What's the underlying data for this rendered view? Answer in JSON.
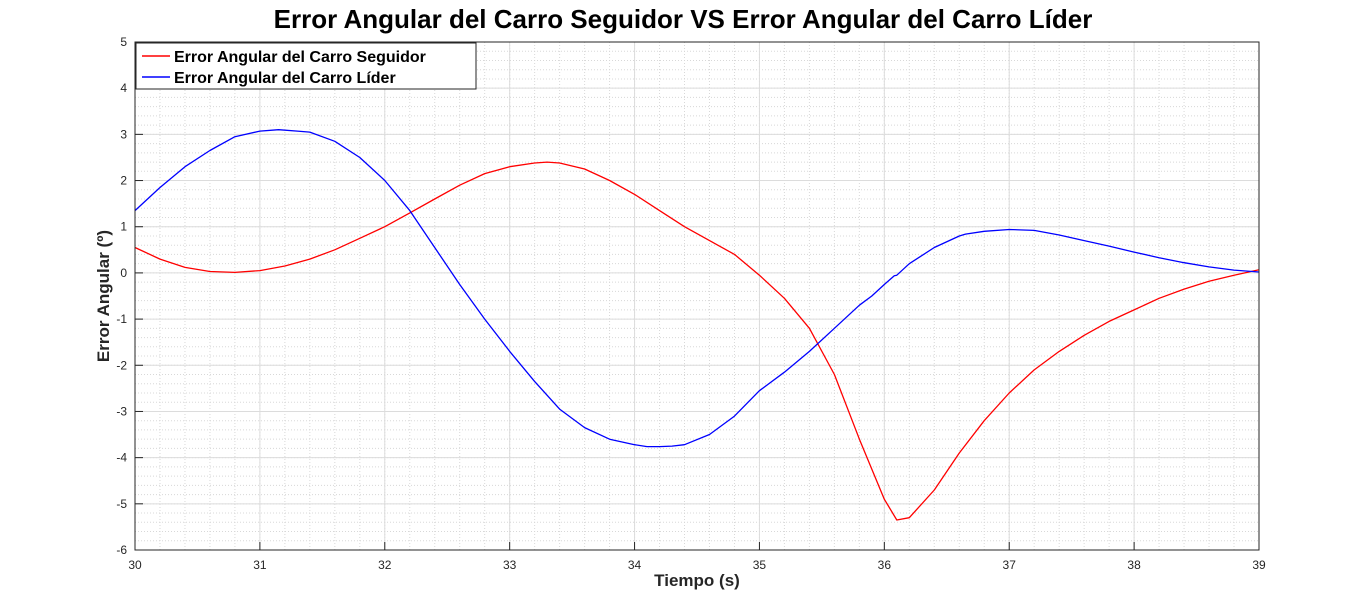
{
  "chart_data": {
    "type": "line",
    "title": "Error Angular del Carro Seguidor VS Error Angular del Carro Líder",
    "xlabel": "Tiempo (s)",
    "ylabel": "Error Angular (º)",
    "xlim": [
      30,
      39
    ],
    "ylim": [
      -6,
      5
    ],
    "xticks": [
      "30",
      "31",
      "32",
      "33",
      "34",
      "35",
      "36",
      "37",
      "38",
      "39"
    ],
    "yticks": [
      "5",
      "4",
      "3",
      "2",
      "1",
      "0",
      "-1",
      "-2",
      "-3",
      "-4",
      "-5",
      "-6"
    ],
    "grid": true,
    "minor_grid": true,
    "legend_position": "top-left",
    "series": [
      {
        "name": "Error Angular del Carro Seguidor",
        "color": "#ff0000",
        "x": [
          30.0,
          30.2,
          30.4,
          30.6,
          30.8,
          31.0,
          31.2,
          31.4,
          31.6,
          31.8,
          32.0,
          32.2,
          32.4,
          32.6,
          32.8,
          33.0,
          33.2,
          33.3,
          33.4,
          33.6,
          33.8,
          34.0,
          34.2,
          34.4,
          34.6,
          34.8,
          35.0,
          35.2,
          35.4,
          35.6,
          35.8,
          36.0,
          36.1,
          36.2,
          36.4,
          36.6,
          36.8,
          37.0,
          37.2,
          37.4,
          37.6,
          37.8,
          38.0,
          38.2,
          38.4,
          38.6,
          38.8,
          39.0
        ],
        "y": [
          0.55,
          0.3,
          0.12,
          0.03,
          0.01,
          0.05,
          0.15,
          0.3,
          0.5,
          0.75,
          1.0,
          1.3,
          1.6,
          1.9,
          2.15,
          2.3,
          2.38,
          2.4,
          2.38,
          2.25,
          2.0,
          1.7,
          1.35,
          1.0,
          0.7,
          0.4,
          -0.05,
          -0.55,
          -1.2,
          -2.2,
          -3.6,
          -4.9,
          -5.35,
          -5.3,
          -4.7,
          -3.9,
          -3.2,
          -2.6,
          -2.1,
          -1.7,
          -1.35,
          -1.05,
          -0.8,
          -0.55,
          -0.35,
          -0.18,
          -0.05,
          0.07
        ]
      },
      {
        "name": "Error Angular del Carro Líder",
        "color": "#0000ff",
        "x": [
          30.0,
          30.2,
          30.4,
          30.6,
          30.8,
          31.0,
          31.15,
          31.3,
          31.4,
          31.6,
          31.8,
          32.0,
          32.2,
          32.4,
          32.6,
          32.8,
          33.0,
          33.2,
          33.4,
          33.6,
          33.8,
          34.0,
          34.1,
          34.2,
          34.3,
          34.4,
          34.6,
          34.8,
          35.0,
          35.2,
          35.4,
          35.6,
          35.8,
          35.9,
          36.0,
          36.08,
          36.1,
          36.2,
          36.4,
          36.6,
          36.65,
          36.8,
          37.0,
          37.2,
          37.4,
          37.6,
          37.8,
          38.0,
          38.2,
          38.4,
          38.6,
          38.8,
          39.0
        ],
        "y": [
          1.35,
          1.85,
          2.3,
          2.65,
          2.95,
          3.07,
          3.1,
          3.07,
          3.05,
          2.85,
          2.5,
          2.0,
          1.35,
          0.55,
          -0.25,
          -1.0,
          -1.7,
          -2.35,
          -2.95,
          -3.35,
          -3.6,
          -3.72,
          -3.76,
          -3.76,
          -3.75,
          -3.72,
          -3.5,
          -3.1,
          -2.55,
          -2.15,
          -1.7,
          -1.2,
          -0.7,
          -0.5,
          -0.25,
          -0.06,
          -0.05,
          0.2,
          0.55,
          0.8,
          0.84,
          0.9,
          0.94,
          0.92,
          0.82,
          0.7,
          0.58,
          0.45,
          0.33,
          0.22,
          0.13,
          0.06,
          0.02
        ]
      }
    ],
    "annotations": []
  }
}
